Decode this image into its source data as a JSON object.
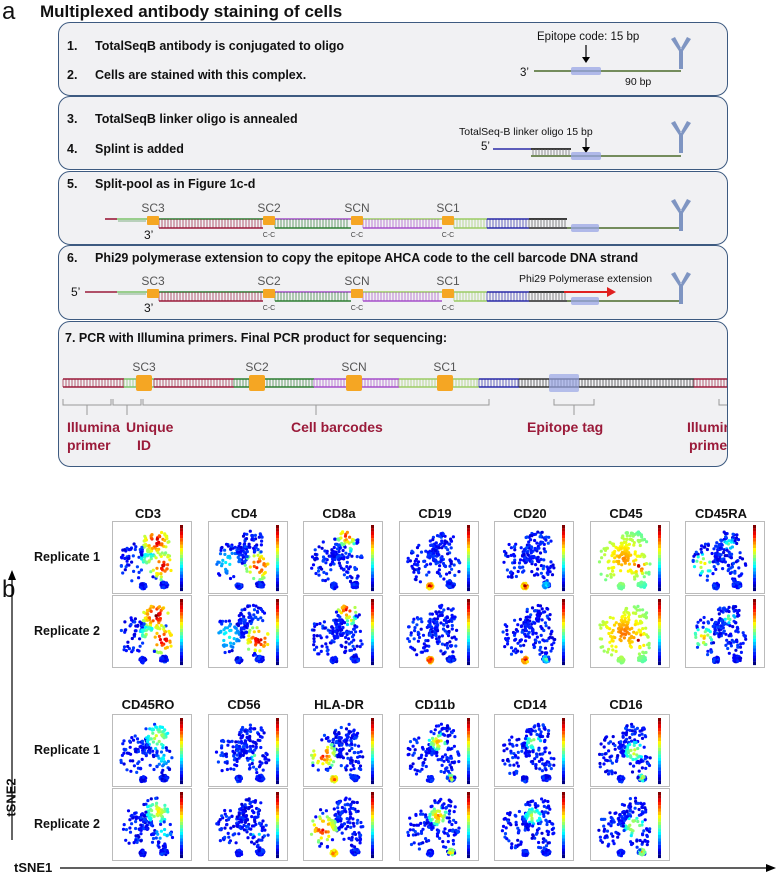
{
  "panel_a": {
    "letter": "a",
    "title": "Multiplexed antibody staining of cells",
    "steps": [
      {
        "num": "1.",
        "text": "TotalSeqB antibody is conjugated to oligo"
      },
      {
        "num": "2.",
        "text": "Cells are stained with this complex."
      },
      {
        "num": "3.",
        "text": "TotalSeqB linker oligo is annealed"
      },
      {
        "num": "4.",
        "text": "Splint is added"
      },
      {
        "num": "5.",
        "text": "Split-pool as in Figure 1c-d"
      },
      {
        "num": "6.",
        "text": "Phi29 polymerase extension to copy the epitope AHCA code to the cell barcode DNA strand"
      },
      {
        "num": "",
        "text": "7. PCR with Illumina primers. Final PCR product for sequencing:"
      }
    ],
    "box1": {
      "epitope_code": "Epitope code: 15 bp",
      "end3": "3’",
      "length": "90 bp"
    },
    "box2": {
      "linker": "TotalSeq-B linker oligo 15 bp",
      "end5": "5’"
    },
    "barcodes": [
      "SC3",
      "SC2",
      "SCN",
      "SC1"
    ],
    "ligation": "C-C",
    "end3": "3’",
    "end5": "5’",
    "extension": "Phi29 Polymerase extension",
    "box7_labels": {
      "illumina_left_1": "Illumina",
      "illumina_left_2": "primer",
      "unique_1": "Unique",
      "unique_2": "ID",
      "cell_barcodes": "Cell barcodes",
      "epitope_tag": "Epitope tag",
      "illumina_right_1": "Illumina",
      "illumina_right_2": "primer"
    },
    "colors": {
      "label_red": "#9b1b3a",
      "box_border": "#3d5a80",
      "antibody": "#7f95c2",
      "barcode_orange": "#f5a623"
    }
  },
  "panel_b": {
    "letter": "b",
    "groups": [
      {
        "markers": [
          "CD3",
          "CD4",
          "CD8a",
          "CD19",
          "CD20",
          "CD45",
          "CD45RA"
        ]
      },
      {
        "markers": [
          "CD45RO",
          "CD56",
          "HLA-DR",
          "CD11b",
          "CD14",
          "CD16"
        ]
      }
    ],
    "replicates": [
      "Replicate 1",
      "Replicate 2"
    ],
    "x_axis": "tSNE1",
    "y_axis": "tSNE2",
    "colormap": "jet"
  }
}
